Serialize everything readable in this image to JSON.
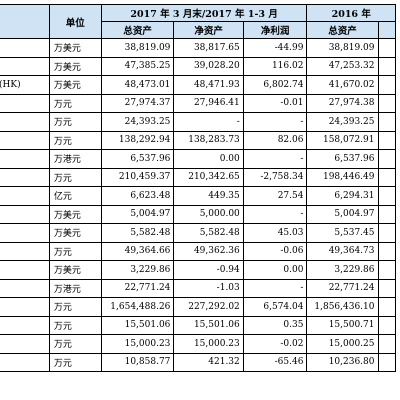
{
  "header": {
    "unit_label": "单位",
    "period_2017": "2017 年 3 月末/2017 年 1-3 月",
    "period_2016": "2016 年",
    "sub_cols": [
      "总资产",
      "净资产",
      "净利润",
      "总资产"
    ]
  },
  "rows": [
    {
      "label": "",
      "unit": "万美元",
      "c1": "38,819.09",
      "c2": "38,817.65",
      "c3": "-44.99",
      "c4": "38,819.09"
    },
    {
      "label": "",
      "unit": "万美元",
      "c1": "47,385.25",
      "c2": "39,028.20",
      "c3": "116.02",
      "c4": "47,253.32"
    },
    {
      "label": "(HK)",
      "unit": "万美元",
      "c1": "48,473.01",
      "c2": "48,471.93",
      "c3": "6,802.74",
      "c4": "41,670.02"
    },
    {
      "label": "",
      "unit": "万元",
      "c1": "27,974.37",
      "c2": "27,946.41",
      "c3": "-0.01",
      "c4": "27,974.38"
    },
    {
      "label": "",
      "unit": "万元",
      "c1": "24,393.25",
      "c2": "-",
      "c3": "-",
      "c4": "24,393.25"
    },
    {
      "label": "",
      "unit": "万元",
      "c1": "138,292.94",
      "c2": "138,283.73",
      "c3": "82.06",
      "c4": "158,072.91"
    },
    {
      "label": "",
      "unit": "万港元",
      "c1": "6,537.96",
      "c2": "0.00",
      "c3": "-",
      "c4": "6,537.96"
    },
    {
      "label": "",
      "unit": "万元",
      "c1": "210,459.37",
      "c2": "210,342.65",
      "c3": "-2,758.34",
      "c4": "198,446.49"
    },
    {
      "label": "",
      "unit": "亿元",
      "c1": "6,623.48",
      "c2": "449.35",
      "c3": "27.54",
      "c4": "6,294.31"
    },
    {
      "label": "",
      "unit": "万美元",
      "c1": "5,004.97",
      "c2": "5,000.00",
      "c3": "-",
      "c4": "5,004.97"
    },
    {
      "label": "",
      "unit": "万美元",
      "c1": "5,582.48",
      "c2": "5,582.48",
      "c3": "45.03",
      "c4": "5,537.45"
    },
    {
      "label": "",
      "unit": "万元",
      "c1": "49,364.66",
      "c2": "49,362.36",
      "c3": "-0.06",
      "c4": "49,364.73"
    },
    {
      "label": "",
      "unit": "万美元",
      "c1": "3,229.86",
      "c2": "-0.94",
      "c3": "0.00",
      "c4": "3,229.86"
    },
    {
      "label": "",
      "unit": "万港元",
      "c1": "22,771.24",
      "c2": "-1.03",
      "c3": "-",
      "c4": "22,771.24"
    },
    {
      "label": "",
      "unit": "万元",
      "c1": "1,654,488.26",
      "c2": "227,292.02",
      "c3": "6,574.04",
      "c4": "1,856,436.10"
    },
    {
      "label": "",
      "unit": "万元",
      "c1": "15,501.06",
      "c2": "15,501.06",
      "c3": "0.35",
      "c4": "15,500.71"
    },
    {
      "label": "",
      "unit": "万元",
      "c1": "15,000.23",
      "c2": "15,000.23",
      "c3": "-0.02",
      "c4": "15,000.25"
    },
    {
      "label": "",
      "unit": "万元",
      "c1": "10,858.77",
      "c2": "421.32",
      "c3": "-65.46",
      "c4": "10,236.80"
    }
  ]
}
